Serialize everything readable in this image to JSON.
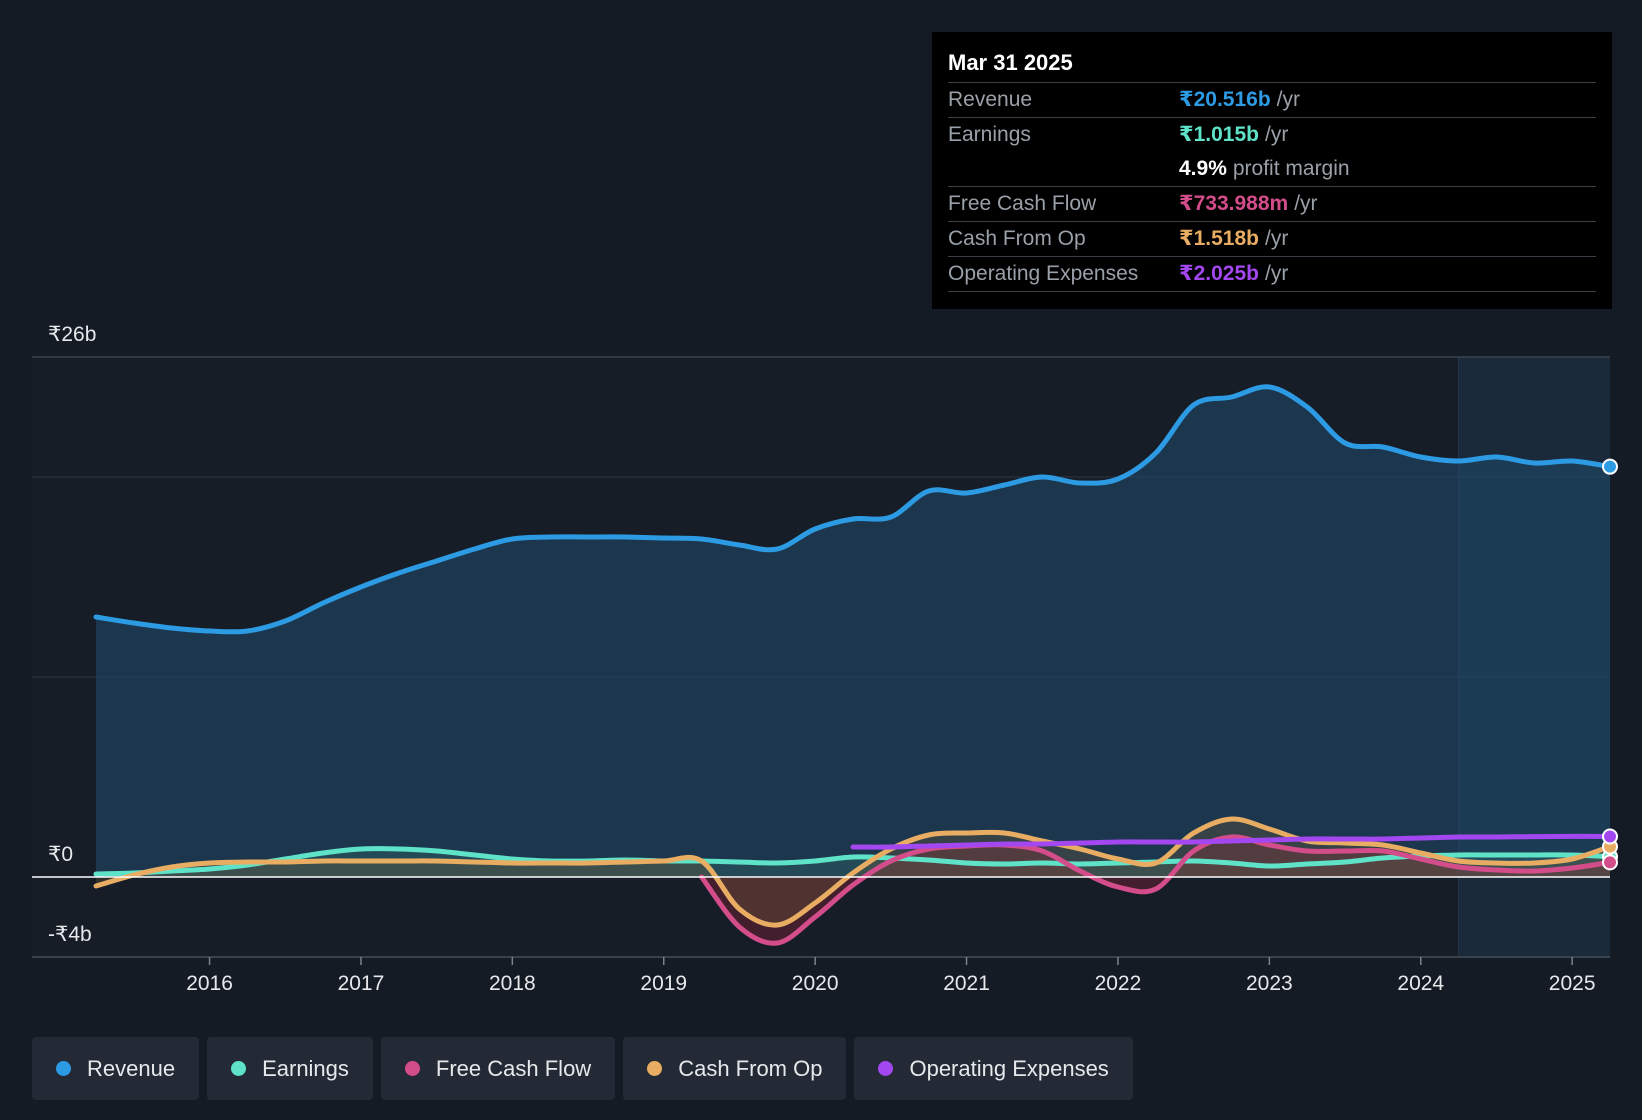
{
  "tooltip": {
    "date": "Mar 31 2025",
    "rows": [
      {
        "label": "Revenue",
        "value": "₹20.516b",
        "unit": "/yr",
        "color": "#2d9be3"
      },
      {
        "label": "Earnings",
        "value": "₹1.015b",
        "unit": "/yr",
        "color": "#5fe3c8"
      },
      {
        "label": "",
        "value": "4.9%",
        "unit": "profit margin",
        "color": "#ffffff"
      },
      {
        "label": "Free Cash Flow",
        "value": "₹733.988m",
        "unit": "/yr",
        "color": "#d34d8b"
      },
      {
        "label": "Cash From Op",
        "value": "₹1.518b",
        "unit": "/yr",
        "color": "#e8ad62"
      },
      {
        "label": "Operating Expenses",
        "value": "₹2.025b",
        "unit": "/yr",
        "color": "#a347f0"
      }
    ]
  },
  "legend": [
    {
      "label": "Revenue",
      "color": "#2d9be3"
    },
    {
      "label": "Earnings",
      "color": "#5fe3c8"
    },
    {
      "label": "Free Cash Flow",
      "color": "#d34d8b"
    },
    {
      "label": "Cash From Op",
      "color": "#e8ad62"
    },
    {
      "label": "Operating Expenses",
      "color": "#a347f0"
    }
  ],
  "chart_data": {
    "type": "line",
    "title": "",
    "xlabel": "",
    "ylabel": "",
    "ylim": [
      -4,
      26
    ],
    "xlim": [
      2015.25,
      2025.25
    ],
    "y_tick_labels": [
      {
        "value": 26,
        "label": "₹26b"
      },
      {
        "value": 0,
        "label": "₹0"
      },
      {
        "value": -4,
        "label": "-₹4b"
      }
    ],
    "gridlines": [
      20,
      10
    ],
    "x_ticks": [
      {
        "value": 2016,
        "label": "2016"
      },
      {
        "value": 2017,
        "label": "2017"
      },
      {
        "value": 2018,
        "label": "2018"
      },
      {
        "value": 2019,
        "label": "2019"
      },
      {
        "value": 2020,
        "label": "2020"
      },
      {
        "value": 2021,
        "label": "2021"
      },
      {
        "value": 2022,
        "label": "2022"
      },
      {
        "value": 2023,
        "label": "2023"
      },
      {
        "value": 2024,
        "label": "2024"
      },
      {
        "value": 2025,
        "label": "2025"
      }
    ],
    "forecast_shade_start": 2024.25,
    "series": [
      {
        "name": "Revenue",
        "color": "#2d9be3",
        "fill": true,
        "points": [
          [
            2015.25,
            13.0
          ],
          [
            2015.5,
            12.7
          ],
          [
            2015.75,
            12.45
          ],
          [
            2016.0,
            12.3
          ],
          [
            2016.25,
            12.3
          ],
          [
            2016.5,
            12.8
          ],
          [
            2016.75,
            13.7
          ],
          [
            2017.0,
            14.5
          ],
          [
            2017.25,
            15.2
          ],
          [
            2017.5,
            15.8
          ],
          [
            2017.75,
            16.4
          ],
          [
            2018.0,
            16.9
          ],
          [
            2018.25,
            17.0
          ],
          [
            2018.5,
            17.0
          ],
          [
            2018.75,
            17.0
          ],
          [
            2019.0,
            16.95
          ],
          [
            2019.25,
            16.9
          ],
          [
            2019.5,
            16.6
          ],
          [
            2019.75,
            16.4
          ],
          [
            2020.0,
            17.4
          ],
          [
            2020.25,
            17.9
          ],
          [
            2020.5,
            18.0
          ],
          [
            2020.75,
            19.3
          ],
          [
            2021.0,
            19.2
          ],
          [
            2021.25,
            19.6
          ],
          [
            2021.5,
            20.0
          ],
          [
            2021.75,
            19.7
          ],
          [
            2022.0,
            19.9
          ],
          [
            2022.25,
            21.2
          ],
          [
            2022.5,
            23.6
          ],
          [
            2022.75,
            24.0
          ],
          [
            2023.0,
            24.5
          ],
          [
            2023.25,
            23.5
          ],
          [
            2023.5,
            21.7
          ],
          [
            2023.75,
            21.5
          ],
          [
            2024.0,
            21.0
          ],
          [
            2024.25,
            20.8
          ],
          [
            2024.5,
            21.0
          ],
          [
            2024.75,
            20.7
          ],
          [
            2025.0,
            20.8
          ],
          [
            2025.25,
            20.516
          ]
        ]
      },
      {
        "name": "Earnings",
        "color": "#5fe3c8",
        "fill": true,
        "points": [
          [
            2015.25,
            0.15
          ],
          [
            2015.5,
            0.2
          ],
          [
            2015.75,
            0.3
          ],
          [
            2016.0,
            0.4
          ],
          [
            2016.25,
            0.6
          ],
          [
            2016.5,
            0.9
          ],
          [
            2016.75,
            1.2
          ],
          [
            2017.0,
            1.4
          ],
          [
            2017.25,
            1.4
          ],
          [
            2017.5,
            1.3
          ],
          [
            2017.75,
            1.1
          ],
          [
            2018.0,
            0.9
          ],
          [
            2018.25,
            0.8
          ],
          [
            2018.5,
            0.8
          ],
          [
            2018.75,
            0.85
          ],
          [
            2019.0,
            0.8
          ],
          [
            2019.25,
            0.8
          ],
          [
            2019.5,
            0.75
          ],
          [
            2019.75,
            0.7
          ],
          [
            2020.0,
            0.8
          ],
          [
            2020.25,
            1.0
          ],
          [
            2020.5,
            0.95
          ],
          [
            2020.75,
            0.85
          ],
          [
            2021.0,
            0.7
          ],
          [
            2021.25,
            0.65
          ],
          [
            2021.5,
            0.7
          ],
          [
            2021.75,
            0.65
          ],
          [
            2022.0,
            0.7
          ],
          [
            2022.25,
            0.75
          ],
          [
            2022.5,
            0.8
          ],
          [
            2022.75,
            0.7
          ],
          [
            2023.0,
            0.55
          ],
          [
            2023.25,
            0.65
          ],
          [
            2023.5,
            0.75
          ],
          [
            2023.75,
            0.95
          ],
          [
            2024.0,
            1.05
          ],
          [
            2024.25,
            1.1
          ],
          [
            2024.5,
            1.1
          ],
          [
            2024.75,
            1.1
          ],
          [
            2025.0,
            1.1
          ],
          [
            2025.25,
            1.015
          ]
        ]
      },
      {
        "name": "Free Cash Flow",
        "color": "#d34d8b",
        "fill": true,
        "points": [
          [
            2019.25,
            0.0
          ],
          [
            2019.5,
            -2.5
          ],
          [
            2019.75,
            -3.3
          ],
          [
            2020.0,
            -2.0
          ],
          [
            2020.25,
            -0.4
          ],
          [
            2020.5,
            0.8
          ],
          [
            2020.75,
            1.4
          ],
          [
            2021.0,
            1.55
          ],
          [
            2021.25,
            1.6
          ],
          [
            2021.5,
            1.3
          ],
          [
            2021.75,
            0.3
          ],
          [
            2022.0,
            -0.5
          ],
          [
            2022.25,
            -0.6
          ],
          [
            2022.5,
            1.3
          ],
          [
            2022.75,
            2.0
          ],
          [
            2023.0,
            1.6
          ],
          [
            2023.25,
            1.3
          ],
          [
            2023.5,
            1.3
          ],
          [
            2023.75,
            1.3
          ],
          [
            2024.0,
            0.9
          ],
          [
            2024.25,
            0.5
          ],
          [
            2024.5,
            0.35
          ],
          [
            2024.75,
            0.3
          ],
          [
            2025.0,
            0.45
          ],
          [
            2025.25,
            0.734
          ]
        ]
      },
      {
        "name": "Cash From Op",
        "color": "#e8ad62",
        "fill": true,
        "points": [
          [
            2015.25,
            -0.45
          ],
          [
            2015.5,
            0.1
          ],
          [
            2015.75,
            0.5
          ],
          [
            2016.0,
            0.7
          ],
          [
            2016.25,
            0.75
          ],
          [
            2016.5,
            0.75
          ],
          [
            2016.75,
            0.8
          ],
          [
            2017.0,
            0.8
          ],
          [
            2017.25,
            0.8
          ],
          [
            2017.5,
            0.8
          ],
          [
            2017.75,
            0.75
          ],
          [
            2018.0,
            0.7
          ],
          [
            2018.25,
            0.7
          ],
          [
            2018.5,
            0.7
          ],
          [
            2018.75,
            0.75
          ],
          [
            2019.0,
            0.8
          ],
          [
            2019.25,
            0.8
          ],
          [
            2019.5,
            -1.6
          ],
          [
            2019.75,
            -2.4
          ],
          [
            2020.0,
            -1.3
          ],
          [
            2020.25,
            0.2
          ],
          [
            2020.5,
            1.4
          ],
          [
            2020.75,
            2.1
          ],
          [
            2021.0,
            2.2
          ],
          [
            2021.25,
            2.2
          ],
          [
            2021.5,
            1.8
          ],
          [
            2021.75,
            1.4
          ],
          [
            2022.0,
            0.9
          ],
          [
            2022.25,
            0.7
          ],
          [
            2022.5,
            2.2
          ],
          [
            2022.75,
            2.9
          ],
          [
            2023.0,
            2.4
          ],
          [
            2023.25,
            1.8
          ],
          [
            2023.5,
            1.7
          ],
          [
            2023.75,
            1.6
          ],
          [
            2024.0,
            1.2
          ],
          [
            2024.25,
            0.8
          ],
          [
            2024.5,
            0.7
          ],
          [
            2024.75,
            0.7
          ],
          [
            2025.0,
            0.9
          ],
          [
            2025.25,
            1.518
          ]
        ]
      },
      {
        "name": "Operating Expenses",
        "color": "#a347f0",
        "fill": false,
        "points": [
          [
            2020.25,
            1.5
          ],
          [
            2020.5,
            1.5
          ],
          [
            2020.75,
            1.55
          ],
          [
            2021.0,
            1.6
          ],
          [
            2021.25,
            1.65
          ],
          [
            2021.5,
            1.65
          ],
          [
            2021.75,
            1.7
          ],
          [
            2022.0,
            1.75
          ],
          [
            2022.25,
            1.75
          ],
          [
            2022.5,
            1.75
          ],
          [
            2022.75,
            1.8
          ],
          [
            2023.0,
            1.85
          ],
          [
            2023.25,
            1.9
          ],
          [
            2023.5,
            1.9
          ],
          [
            2023.75,
            1.9
          ],
          [
            2024.0,
            1.95
          ],
          [
            2024.25,
            2.0
          ],
          [
            2024.5,
            2.0
          ],
          [
            2024.75,
            2.02
          ],
          [
            2025.0,
            2.03
          ],
          [
            2025.25,
            2.025
          ]
        ]
      }
    ]
  }
}
